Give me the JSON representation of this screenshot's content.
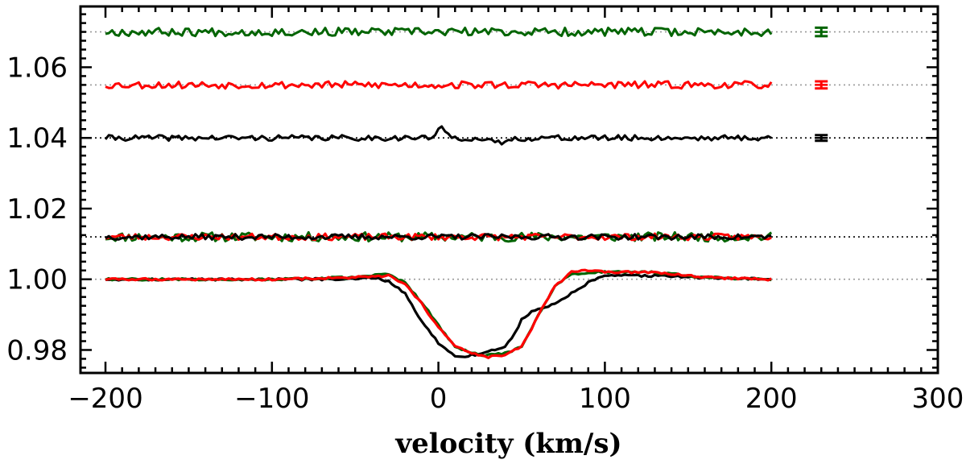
{
  "chart_data": {
    "type": "line",
    "title": "",
    "xlabel": "velocity (km/s)",
    "ylabel": "",
    "xlim": [
      -215,
      300
    ],
    "ylim": [
      0.9735,
      1.0772
    ],
    "x_ticks": [
      -200,
      -100,
      0,
      100,
      200,
      300
    ],
    "x_tick_labels": [
      "−200",
      "−100",
      "0",
      "100",
      "200",
      "300"
    ],
    "y_ticks": [
      0.98,
      1.0,
      1.02,
      1.04,
      1.06
    ],
    "y_tick_labels": [
      "0.98",
      "1.00",
      "1.02",
      "1.04",
      "1.06"
    ],
    "colors": {
      "black": "#000000",
      "red": "#ff0000",
      "green": "#006400",
      "reference": "#999999"
    },
    "reference_lines": [
      {
        "y": 1.0,
        "style": "dotted",
        "color": "#999999"
      },
      {
        "y": 1.012,
        "style": "dotted",
        "color": "#000000"
      },
      {
        "y": 1.04,
        "style": "dotted",
        "color": "#000000"
      },
      {
        "y": 1.055,
        "style": "dotted",
        "color": "#999999"
      },
      {
        "y": 1.07,
        "style": "dotted",
        "color": "#999999"
      }
    ],
    "series": [
      {
        "color": "#000000",
        "x": [
          -200,
          -150,
          -100,
          -50,
          -40,
          -30,
          -20,
          -15,
          -10,
          -5,
          0,
          5,
          10,
          15,
          20,
          30,
          40,
          45,
          50,
          55,
          60,
          70,
          80,
          90,
          100,
          130,
          160,
          200
        ],
        "y": [
          1.0,
          1.0,
          1.0,
          1.0,
          1.0005,
          0.9995,
          0.996,
          0.992,
          0.988,
          0.985,
          0.982,
          0.98,
          0.9785,
          0.978,
          0.9785,
          0.9795,
          0.981,
          0.984,
          0.9885,
          0.9905,
          0.9915,
          0.993,
          0.996,
          0.999,
          1.001,
          1.001,
          1.0005,
          1.0
        ]
      },
      {
        "color": "#006400",
        "x": [
          -200,
          -150,
          -100,
          -50,
          -30,
          -20,
          -10,
          0,
          10,
          20,
          30,
          40,
          50,
          55,
          60,
          70,
          80,
          90,
          100,
          130,
          160,
          200
        ],
        "y": [
          1.0,
          1.0,
          1.0,
          1.0005,
          1.0015,
          0.999,
          0.9935,
          0.987,
          0.981,
          0.979,
          0.9785,
          0.979,
          0.981,
          0.985,
          0.99,
          0.998,
          1.0015,
          1.002,
          1.002,
          1.002,
          1.0005,
          1.0
        ]
      },
      {
        "color": "#ff0000",
        "x": [
          -200,
          -150,
          -100,
          -50,
          -30,
          -20,
          -10,
          0,
          10,
          20,
          30,
          40,
          50,
          55,
          60,
          70,
          80,
          90,
          100,
          130,
          160,
          200
        ],
        "y": [
          1.0,
          1.0,
          1.0,
          1.0005,
          1.001,
          0.9985,
          0.993,
          0.9865,
          0.981,
          0.979,
          0.978,
          0.9785,
          0.981,
          0.985,
          0.99,
          0.998,
          1.002,
          1.0025,
          1.002,
          1.002,
          1.0005,
          1.0
        ]
      }
    ],
    "noisy_series": [
      {
        "color": "#006400",
        "level": 1.012,
        "x_range": [
          -200,
          200
        ],
        "noise": 0.001,
        "seed": 11
      },
      {
        "color": "#ff0000",
        "level": 1.012,
        "x_range": [
          -200,
          200
        ],
        "noise": 0.0007,
        "seed": 23
      },
      {
        "color": "#000000",
        "level": 1.012,
        "x_range": [
          -200,
          200
        ],
        "noise": 0.0006,
        "seed": 37
      },
      {
        "color": "#000000",
        "level": 1.04,
        "x_range": [
          -200,
          200
        ],
        "noise": 0.0006,
        "seed": 41,
        "bumps": [
          {
            "x": 2,
            "amp": 0.0025,
            "w": 4
          },
          {
            "x": 35,
            "amp": -0.0013,
            "w": 10
          }
        ]
      },
      {
        "color": "#ff0000",
        "level": 1.055,
        "x_range": [
          -200,
          200
        ],
        "noise": 0.0008,
        "seed": 53
      },
      {
        "color": "#006400",
        "level": 1.07,
        "x_range": [
          -200,
          200
        ],
        "noise": 0.0009,
        "seed": 67
      }
    ],
    "error_bars": [
      {
        "color": "#006400",
        "x": 230,
        "y": 1.07,
        "err": 0.0012
      },
      {
        "color": "#ff0000",
        "x": 230,
        "y": 1.055,
        "err": 0.001
      },
      {
        "color": "#000000",
        "x": 230,
        "y": 1.04,
        "err": 0.0008
      }
    ]
  }
}
